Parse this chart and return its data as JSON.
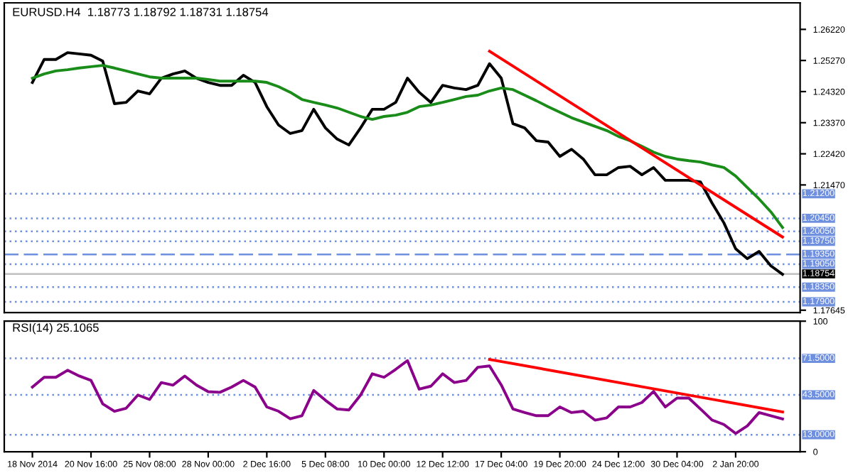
{
  "chart_data": [
    {
      "type": "line",
      "title": "EURUSD.H4  1.18773 1.18792 1.18731 1.18754",
      "categories": [
        null,
        null,
        null,
        null,
        null,
        null,
        null,
        null,
        null,
        null,
        null,
        null,
        null,
        null,
        null,
        null,
        null,
        null,
        null,
        null,
        null,
        null,
        null,
        null,
        null,
        null,
        null,
        null,
        null,
        null,
        null,
        null,
        null,
        null,
        null,
        null,
        null,
        null,
        null,
        null,
        null,
        null,
        null,
        null,
        null,
        null,
        null,
        null,
        null,
        null,
        null,
        null,
        null,
        null,
        null,
        null,
        null,
        null,
        null,
        null,
        null,
        null,
        null,
        null,
        null
      ],
      "series": [
        {
          "color": "#000000",
          "values": [
            1.246,
            1.253,
            1.253,
            1.2551,
            1.2547,
            1.2543,
            1.2525,
            1.2395,
            1.2399,
            1.2434,
            1.2425,
            1.2473,
            1.2486,
            1.2495,
            1.2473,
            1.246,
            1.2451,
            1.2451,
            1.2482,
            1.246,
            1.2386,
            1.233,
            1.2304,
            1.2313,
            1.2378,
            1.2321,
            1.2287,
            1.2269,
            1.2321,
            1.2378,
            1.2378,
            1.2399,
            1.2473,
            1.243,
            1.2399,
            1.2451,
            1.2443,
            1.2438,
            1.2451,
            1.2517,
            1.2473,
            1.2334,
            1.2321,
            1.2282,
            1.2278,
            1.2234,
            1.2256,
            1.2226,
            1.2178,
            1.2178,
            1.22,
            1.2204,
            1.2178,
            1.22,
            1.2161,
            1.2161,
            1.2161,
            1.2156,
            1.2091,
            1.2031,
            1.1952,
            1.1922,
            1.1944,
            1.19,
            1.1874
          ]
        },
        {
          "color": "#1a8c1a",
          "values": [
            1.2473,
            1.2486,
            1.2495,
            1.2499,
            1.2504,
            1.2508,
            1.2512,
            1.2504,
            1.2495,
            1.2486,
            1.2477,
            1.2473,
            1.2473,
            1.2473,
            1.2473,
            1.2469,
            1.2464,
            1.2464,
            1.2464,
            1.2464,
            1.246,
            1.2447,
            1.243,
            1.2408,
            1.2399,
            1.2391,
            1.2382,
            1.2369,
            1.2356,
            1.2347,
            1.2356,
            1.236,
            1.2369,
            1.2386,
            1.2391,
            1.2399,
            1.2408,
            1.2417,
            1.2421,
            1.2434,
            1.2443,
            1.2438,
            1.2421,
            1.2404,
            1.2386,
            1.2369,
            1.2352,
            1.2339,
            1.2326,
            1.2313,
            1.2295,
            1.2282,
            1.2265,
            1.2247,
            1.2234,
            1.2226,
            1.2221,
            1.2217,
            1.2208,
            1.22,
            1.2174,
            1.2139,
            1.2104,
            1.2065,
            1.2017
          ]
        },
        {
          "type": "line",
          "color": "#ff0000",
          "values": [
            null,
            null,
            null,
            null,
            null,
            null,
            null,
            null,
            null,
            null,
            null,
            null,
            null,
            null,
            null,
            null,
            null,
            null,
            null,
            null,
            null,
            null,
            null,
            null,
            null,
            null,
            null,
            null,
            null,
            null,
            null,
            null,
            null,
            null,
            null,
            null,
            null,
            null,
            null,
            1.2555,
            null,
            null,
            null,
            null,
            null,
            null,
            null,
            null,
            null,
            null,
            null,
            null,
            null,
            null,
            null,
            null,
            null,
            null,
            null,
            null,
            null,
            null,
            null,
            null,
            1.1988
          ]
        }
      ],
      "ylim": [
        1.1757,
        1.2703
      ],
      "yticks": [
        {
          "value": 1.2622,
          "label": "1.26220"
        },
        {
          "value": 1.2527,
          "label": "1.25270"
        },
        {
          "value": 1.2432,
          "label": "1.24320"
        },
        {
          "value": 1.2337,
          "label": "1.23370"
        },
        {
          "value": 1.2242,
          "label": "1.22420"
        },
        {
          "value": 1.2147,
          "label": "1.21470"
        },
        {
          "value": 1.17645,
          "label": "1.17645"
        }
      ],
      "ref_lines": [
        {
          "axis": "y",
          "value": 1.212,
          "label": "1.21200",
          "color": "#6f8fdf",
          "line_style": "dotted"
        },
        {
          "axis": "y",
          "value": 1.2045,
          "label": "1.20450",
          "color": "#6f8fdf",
          "line_style": "dotted"
        },
        {
          "axis": "y",
          "value": 1.2005,
          "label": "1.20050",
          "color": "#6f8fdf",
          "line_style": "dotted"
        },
        {
          "axis": "y",
          "value": 1.1975,
          "label": "1.19750",
          "color": "#6f8fdf",
          "line_style": "dotted"
        },
        {
          "axis": "y",
          "value": 1.1935,
          "label": "1.19350",
          "color": "#6f8fdf",
          "line_style": "dashed"
        },
        {
          "axis": "y",
          "value": 1.1905,
          "label": "1.19050",
          "color": "#6f8fdf",
          "line_style": "dotted"
        },
        {
          "axis": "y",
          "value": 1.18754,
          "label": "1.18754",
          "color": "#c0c0c0",
          "line_style": "solid"
        },
        {
          "axis": "y",
          "value": 1.1835,
          "label": "1.18350",
          "color": "#6f8fdf",
          "line_style": "dotted"
        },
        {
          "axis": "y",
          "value": 1.179,
          "label": "1.17900",
          "color": "#6f8fdf",
          "line_style": "dotted"
        }
      ],
      "tick_labels": "y",
      "grid": false,
      "legend": false
    },
    {
      "type": "line",
      "title": "RSI(14) 25.1065",
      "categories": [
        "18 Nov 2014",
        null,
        null,
        null,
        null,
        "20 Nov 16:00",
        null,
        null,
        null,
        null,
        "25 Nov 08:00",
        null,
        null,
        null,
        null,
        "28 Nov 00:00",
        null,
        null,
        null,
        null,
        "2 Dec 16:00",
        null,
        null,
        null,
        null,
        "5 Dec 08:00",
        null,
        null,
        null,
        null,
        "10 Dec 00:00",
        null,
        null,
        null,
        null,
        "12 Dec 12:00",
        null,
        null,
        null,
        null,
        "17 Dec 04:00",
        null,
        null,
        null,
        null,
        "19 Dec 20:00",
        null,
        null,
        null,
        null,
        "24 Dec 12:00",
        null,
        null,
        null,
        null,
        "30 Dec 04:00",
        null,
        null,
        null,
        null,
        "2 Jan 20:00",
        null,
        null,
        null,
        null
      ],
      "series": [
        {
          "color": "#8b008b",
          "values": [
            49.5,
            57,
            57,
            62.4,
            58,
            54.6,
            36.7,
            31,
            33.3,
            43.4,
            40,
            53,
            51,
            58,
            51,
            46,
            45.5,
            49.5,
            54.6,
            49.5,
            34.3,
            31,
            25.2,
            27.6,
            46.9,
            39.4,
            32.7,
            32,
            43.4,
            59.7,
            57,
            63.1,
            69.8,
            47.9,
            50.2,
            59.7,
            53,
            54.6,
            64.7,
            65.7,
            51.2,
            32.7,
            30,
            27.6,
            27.6,
            34.3,
            30,
            31,
            24.2,
            25.9,
            34.3,
            34.3,
            37.7,
            46.2,
            34.3,
            41.1,
            41.1,
            32.7,
            24.2,
            20.8,
            14,
            19.8,
            30,
            27.6,
            25.1
          ]
        },
        {
          "type": "line",
          "color": "#ff0000",
          "values": [
            null,
            null,
            null,
            null,
            null,
            null,
            null,
            null,
            null,
            null,
            null,
            null,
            null,
            null,
            null,
            null,
            null,
            null,
            null,
            null,
            null,
            null,
            null,
            null,
            null,
            null,
            null,
            null,
            null,
            null,
            null,
            null,
            null,
            null,
            null,
            null,
            null,
            null,
            null,
            70.7,
            null,
            null,
            null,
            null,
            null,
            null,
            null,
            null,
            null,
            null,
            null,
            null,
            null,
            null,
            null,
            null,
            null,
            null,
            null,
            null,
            null,
            null,
            null,
            null,
            30.5
          ]
        }
      ],
      "ylim": [
        0,
        100
      ],
      "yticks": [
        0,
        100
      ],
      "ref_lines": [
        {
          "axis": "y",
          "value": 71.5,
          "label": "71.5000",
          "color": "#6f8fdf",
          "line_style": "dotted"
        },
        {
          "axis": "y",
          "value": 43.5,
          "label": "43.5000",
          "color": "#6f8fdf",
          "line_style": "dotted"
        },
        {
          "axis": "y",
          "value": 13,
          "label": "13.0000",
          "color": "#6f8fdf",
          "line_style": "dotted"
        }
      ],
      "grid": false,
      "legend": false
    }
  ]
}
